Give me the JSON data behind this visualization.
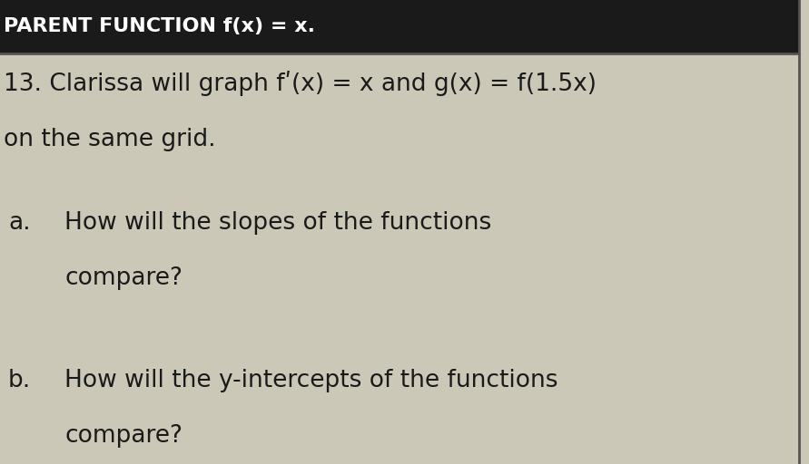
{
  "bg_color": "#ccc8b8",
  "header_bg": "#1a1a1a",
  "header_text": "PARENT FUNCTION f(x) = x.",
  "header_fontsize": 16,
  "header_color": "#ffffff",
  "line1_text": "13. Clarissa will graph fʹ(x) = x and g(x) = f(1.5x)",
  "line2_text": "on the same grid.",
  "body_fontsize": 19,
  "qa_fontsize": 19,
  "qa_a_label": "a.",
  "qa_a_text1": "How will the slopes of the functions",
  "qa_a_text2": "compare?",
  "qa_b_label": "b.",
  "qa_b_text1": "How will the y-intercepts of the functions",
  "qa_b_text2": "compare?",
  "text_color": "#1a1a1a",
  "divider_color": "#555555",
  "right_border_color": "#555555"
}
